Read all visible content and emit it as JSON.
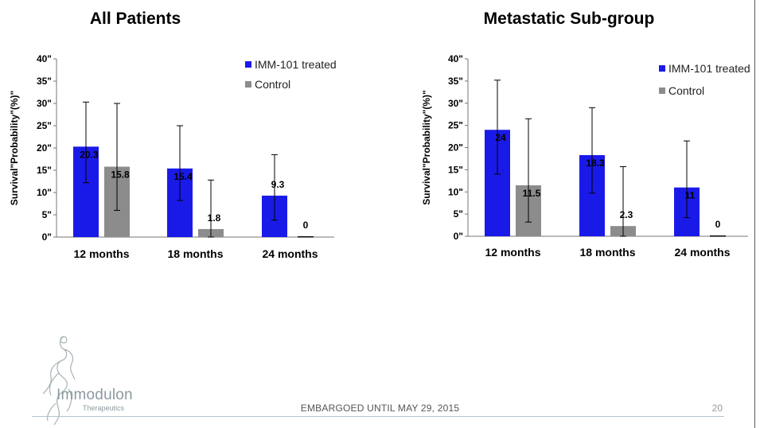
{
  "page": {
    "footer_text": "EMBARGOED UNTIL MAY 29, 2015",
    "page_number": "20",
    "logo_name": "Immodulon",
    "logo_subtitle": "Therapeutics"
  },
  "colors": {
    "treated": "#1a1ae8",
    "control": "#8c8c8c"
  },
  "chart_data": [
    {
      "type": "bar",
      "title": "All Patients",
      "ylabel": "Survival\"Probability\"(%)\"",
      "ylim": [
        0,
        40
      ],
      "yticks": [
        "0\"",
        "5\"",
        "10\"",
        "15\"",
        "20\"",
        "25\"",
        "30\"",
        "35\"",
        "40\""
      ],
      "categories": [
        "12 months",
        "18 months",
        "24 months"
      ],
      "series": [
        {
          "name": "IMM-101 treated",
          "values": [
            20.3,
            15.4,
            9.3
          ],
          "labels": [
            "20.3",
            "15.4",
            "9.3"
          ],
          "err_low": [
            12.2,
            8.2,
            3.8
          ],
          "err_high": [
            30.3,
            25.0,
            18.5
          ]
        },
        {
          "name": "Control",
          "values": [
            15.8,
            1.8,
            0
          ],
          "labels": [
            "15.8",
            "1.8",
            "0"
          ],
          "err_low": [
            6.0,
            0,
            null
          ],
          "err_high": [
            30.0,
            12.8,
            null
          ]
        }
      ],
      "legend_position": "top-right",
      "grid": false
    },
    {
      "type": "bar",
      "title": "Metastatic Sub-group",
      "ylabel": "Survival\"Probability\"(%)\"",
      "ylim": [
        0,
        40
      ],
      "yticks": [
        "0\"",
        "5\"",
        "10\"",
        "15\"",
        "20\"",
        "25\"",
        "30\"",
        "35\"",
        "40\""
      ],
      "categories": [
        "12 months",
        "18 months",
        "24 months"
      ],
      "series": [
        {
          "name": "IMM-101 treated",
          "values": [
            24,
            18.3,
            11
          ],
          "labels": [
            "24",
            "18.3",
            "11"
          ],
          "err_low": [
            14.0,
            9.7,
            4.2
          ],
          "err_high": [
            35.2,
            29.0,
            21.5
          ]
        },
        {
          "name": "Control",
          "values": [
            11.5,
            2.3,
            0
          ],
          "labels": [
            "11.5",
            "2.3",
            "0"
          ],
          "err_low": [
            3.2,
            0,
            null
          ],
          "err_high": [
            26.5,
            15.7,
            null
          ]
        }
      ],
      "legend_position": "top-right",
      "grid": false
    }
  ]
}
